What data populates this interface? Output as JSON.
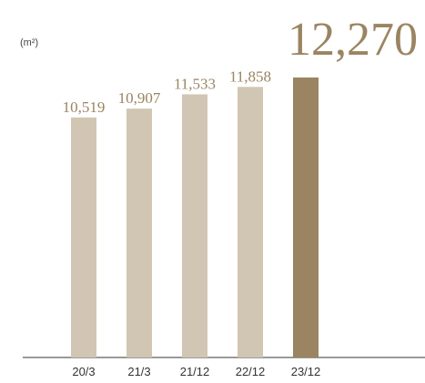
{
  "chart_data": {
    "type": "bar",
    "unit": "(m²)",
    "categories": [
      "20/3",
      "21/3",
      "21/12",
      "22/12",
      "23/12"
    ],
    "values": [
      10519,
      10907,
      11533,
      11858,
      12270
    ],
    "value_labels": [
      "10,519",
      "10,907",
      "11,533",
      "11,858",
      "12,270"
    ],
    "highlight_index": 4,
    "ylim": [
      0,
      12270
    ],
    "grid": false,
    "title": "",
    "xlabel": "",
    "ylabel": ""
  },
  "colors": {
    "bar": "#d1c6b4",
    "highlight_bar": "#9a8461",
    "label": "#9a8461",
    "axis": "#333333"
  }
}
